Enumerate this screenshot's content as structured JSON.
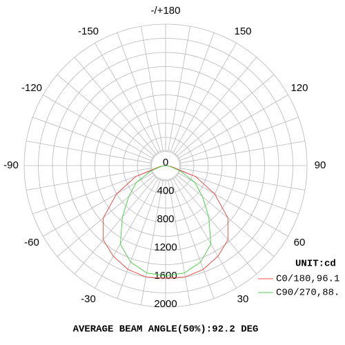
{
  "chart_data": {
    "type": "polar-line",
    "x": [
      -90,
      -80,
      -70,
      -60,
      -50,
      -40,
      -30,
      -20,
      -10,
      0,
      10,
      20,
      30,
      40,
      50,
      60,
      70,
      80,
      90
    ],
    "series": [
      {
        "name": "C0/180,96.1",
        "color": "#e8504a",
        "values": [
          10,
          80,
          450,
          800,
          1150,
          1370,
          1480,
          1560,
          1600,
          1590,
          1600,
          1560,
          1480,
          1370,
          1150,
          800,
          450,
          80,
          10
        ]
      },
      {
        "name": "C90/270,88.",
        "color": "#50d050",
        "values": [
          5,
          60,
          220,
          480,
          680,
          950,
          1280,
          1450,
          1540,
          1560,
          1540,
          1450,
          1280,
          950,
          680,
          480,
          220,
          60,
          5
        ]
      }
    ],
    "rlim": [
      0,
      2000
    ],
    "rticks": [
      0,
      400,
      800,
      1200,
      1600,
      2000
    ],
    "angle_ticks": [
      {
        "value": 180,
        "label": "-/+180"
      },
      150,
      120,
      90,
      60,
      30,
      -30,
      -60,
      -90,
      -120,
      -150
    ],
    "unit": "UNIT:cd",
    "footer": "AVERAGE BEAM ANGLE(50%):92.2 DEG"
  }
}
